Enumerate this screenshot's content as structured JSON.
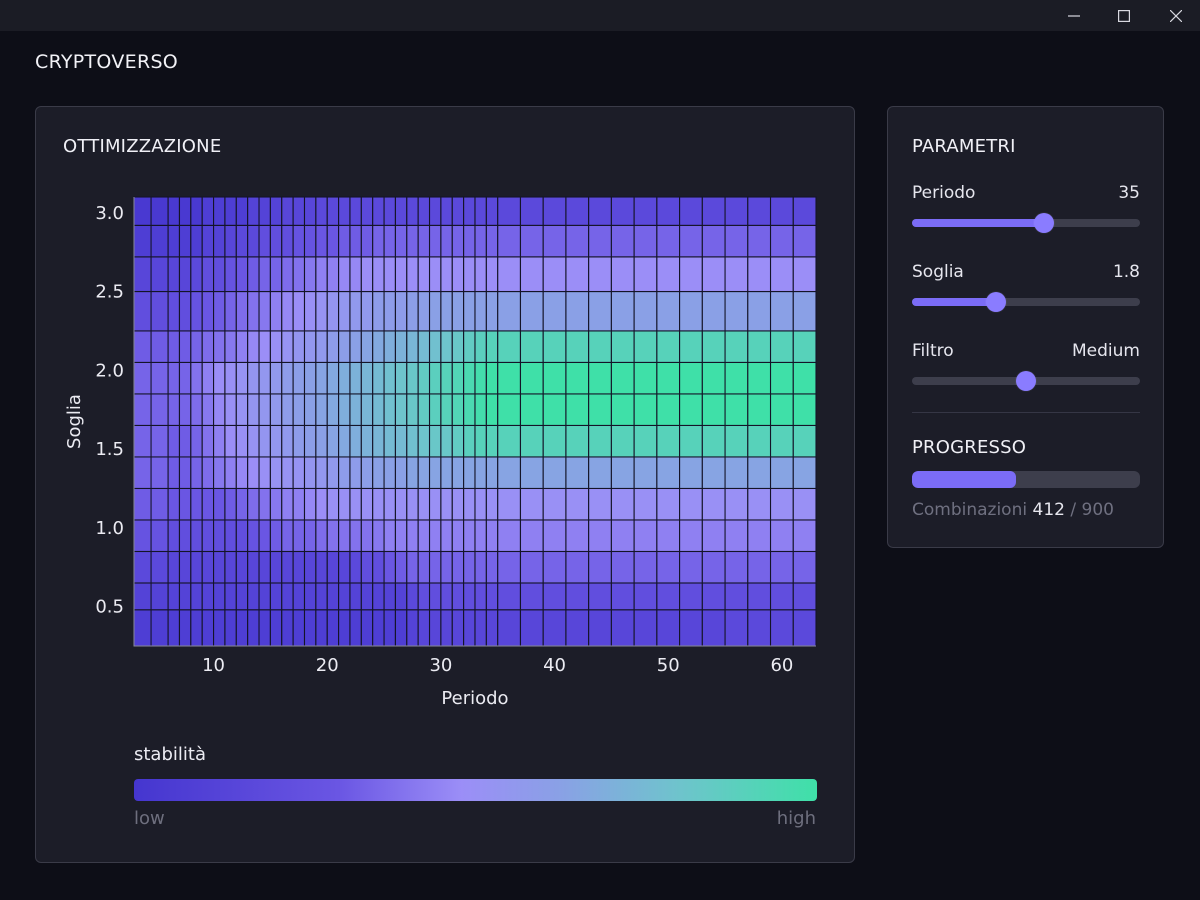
{
  "window": {
    "controls": [
      "minimize-icon",
      "maximize-icon",
      "close-icon"
    ]
  },
  "app": {
    "title": "CRYPTOVERSO"
  },
  "optimization": {
    "title": "OTTIMIZZAZIONE",
    "legend": {
      "title": "stabilità",
      "low": "low",
      "high": "high"
    }
  },
  "chart_data": {
    "type": "heatmap",
    "title": "",
    "xlabel": "Periodo",
    "ylabel": "Soglia",
    "xlim": [
      3,
      63
    ],
    "ylim": [
      0.25,
      3.1
    ],
    "x_ticks": [
      10,
      20,
      30,
      40,
      50,
      60
    ],
    "y_ticks": [
      0.5,
      1.0,
      1.5,
      2.0,
      2.5,
      3.0
    ],
    "x_tick_labels": [
      "10",
      "20",
      "30",
      "40",
      "50",
      "60"
    ],
    "y_tick_labels": [
      "0.5",
      "1.0",
      "1.5",
      "2.0",
      "2.5",
      "3.0"
    ],
    "x_edges": [
      3,
      4.5,
      6,
      7,
      8,
      9,
      10,
      11,
      12,
      13,
      14,
      15,
      16,
      17,
      18,
      19,
      20,
      21,
      22,
      23,
      24,
      25,
      26,
      27,
      28,
      29,
      30,
      31,
      32,
      33,
      34,
      35,
      37,
      39,
      41,
      43,
      45,
      47,
      49,
      51,
      53,
      55,
      57,
      59,
      61,
      63
    ],
    "y_edges": [
      0.25,
      0.48,
      0.65,
      0.85,
      1.05,
      1.25,
      1.45,
      1.65,
      1.85,
      2.05,
      2.25,
      2.5,
      2.72,
      2.92,
      3.1
    ],
    "colorbar": {
      "label": "stabilità",
      "min_label": "low",
      "max_label": "high"
    },
    "colors": [
      "#4536cf",
      "#6a56e3",
      "#9b8ef7",
      "#8aa0e6",
      "#6ec4cc",
      "#3fe0a8"
    ],
    "grid": true,
    "value_range": [
      0,
      1
    ],
    "values_note": "rows from bottom (Soglia 0.25) to top (Soglia 3.1); values normalized 0–1, estimated from color",
    "values": [
      [
        0.05,
        0.05,
        0.05,
        0.05,
        0.05,
        0.05,
        0.05,
        0.05,
        0.05,
        0.05,
        0.05,
        0.05,
        0.05,
        0.05,
        0.05,
        0.05,
        0.05,
        0.05,
        0.05,
        0.05,
        0.05,
        0.05,
        0.05,
        0.08,
        0.1,
        0.1,
        0.1,
        0.1,
        0.1,
        0.1,
        0.1,
        0.1,
        0.1,
        0.1,
        0.1,
        0.1,
        0.1,
        0.1,
        0.1,
        0.1,
        0.1,
        0.12,
        0.12,
        0.12,
        0.12
      ],
      [
        0.08,
        0.08,
        0.08,
        0.08,
        0.08,
        0.08,
        0.08,
        0.08,
        0.08,
        0.08,
        0.08,
        0.08,
        0.08,
        0.08,
        0.08,
        0.08,
        0.08,
        0.08,
        0.08,
        0.08,
        0.08,
        0.08,
        0.08,
        0.12,
        0.15,
        0.15,
        0.15,
        0.15,
        0.15,
        0.15,
        0.15,
        0.15,
        0.15,
        0.15,
        0.15,
        0.15,
        0.15,
        0.15,
        0.15,
        0.15,
        0.15,
        0.15,
        0.15,
        0.15,
        0.15
      ],
      [
        0.12,
        0.12,
        0.1,
        0.1,
        0.1,
        0.1,
        0.1,
        0.1,
        0.1,
        0.1,
        0.1,
        0.1,
        0.1,
        0.1,
        0.1,
        0.1,
        0.1,
        0.1,
        0.12,
        0.15,
        0.15,
        0.2,
        0.22,
        0.25,
        0.25,
        0.25,
        0.25,
        0.25,
        0.25,
        0.25,
        0.25,
        0.25,
        0.25,
        0.25,
        0.25,
        0.25,
        0.25,
        0.25,
        0.25,
        0.25,
        0.25,
        0.25,
        0.25,
        0.25,
        0.25
      ],
      [
        0.18,
        0.18,
        0.15,
        0.15,
        0.15,
        0.15,
        0.15,
        0.15,
        0.15,
        0.18,
        0.2,
        0.22,
        0.25,
        0.25,
        0.25,
        0.28,
        0.3,
        0.3,
        0.3,
        0.3,
        0.32,
        0.35,
        0.35,
        0.35,
        0.35,
        0.35,
        0.35,
        0.35,
        0.35,
        0.35,
        0.35,
        0.35,
        0.35,
        0.35,
        0.35,
        0.35,
        0.35,
        0.35,
        0.35,
        0.35,
        0.35,
        0.35,
        0.35,
        0.35,
        0.35
      ],
      [
        0.22,
        0.22,
        0.2,
        0.2,
        0.2,
        0.2,
        0.2,
        0.22,
        0.25,
        0.28,
        0.3,
        0.32,
        0.35,
        0.35,
        0.38,
        0.4,
        0.42,
        0.42,
        0.42,
        0.42,
        0.42,
        0.42,
        0.42,
        0.42,
        0.42,
        0.42,
        0.42,
        0.42,
        0.42,
        0.42,
        0.42,
        0.42,
        0.42,
        0.42,
        0.42,
        0.42,
        0.42,
        0.42,
        0.42,
        0.42,
        0.42,
        0.42,
        0.42,
        0.42,
        0.42
      ],
      [
        0.25,
        0.25,
        0.22,
        0.22,
        0.25,
        0.28,
        0.32,
        0.35,
        0.38,
        0.4,
        0.42,
        0.45,
        0.45,
        0.45,
        0.48,
        0.5,
        0.52,
        0.55,
        0.55,
        0.58,
        0.6,
        0.6,
        0.6,
        0.62,
        0.62,
        0.62,
        0.62,
        0.62,
        0.62,
        0.62,
        0.62,
        0.62,
        0.62,
        0.62,
        0.62,
        0.62,
        0.62,
        0.62,
        0.62,
        0.62,
        0.62,
        0.62,
        0.62,
        0.62,
        0.62
      ],
      [
        0.25,
        0.25,
        0.22,
        0.22,
        0.25,
        0.3,
        0.35,
        0.4,
        0.42,
        0.45,
        0.48,
        0.5,
        0.52,
        0.55,
        0.58,
        0.6,
        0.62,
        0.65,
        0.68,
        0.7,
        0.72,
        0.75,
        0.75,
        0.78,
        0.8,
        0.82,
        0.82,
        0.85,
        0.88,
        0.9,
        0.9,
        0.9,
        0.9,
        0.9,
        0.9,
        0.9,
        0.9,
        0.9,
        0.9,
        0.9,
        0.9,
        0.9,
        0.9,
        0.9,
        0.9
      ],
      [
        0.25,
        0.25,
        0.25,
        0.25,
        0.28,
        0.32,
        0.38,
        0.42,
        0.45,
        0.48,
        0.5,
        0.52,
        0.55,
        0.58,
        0.6,
        0.62,
        0.65,
        0.68,
        0.7,
        0.72,
        0.75,
        0.78,
        0.8,
        0.82,
        0.85,
        0.88,
        0.9,
        0.92,
        0.95,
        0.98,
        1,
        1,
        1,
        1,
        1,
        1,
        1,
        1,
        1,
        1,
        1,
        1,
        1,
        1,
        1
      ],
      [
        0.25,
        0.25,
        0.25,
        0.25,
        0.3,
        0.35,
        0.4,
        0.42,
        0.45,
        0.48,
        0.5,
        0.52,
        0.55,
        0.58,
        0.6,
        0.62,
        0.65,
        0.68,
        0.7,
        0.72,
        0.75,
        0.78,
        0.8,
        0.82,
        0.85,
        0.88,
        0.9,
        0.92,
        0.95,
        0.98,
        1,
        1,
        1,
        1,
        1,
        1,
        1,
        1,
        1,
        1,
        1,
        1,
        1,
        1,
        1
      ],
      [
        0.22,
        0.22,
        0.22,
        0.22,
        0.25,
        0.28,
        0.3,
        0.32,
        0.35,
        0.38,
        0.4,
        0.42,
        0.45,
        0.48,
        0.5,
        0.52,
        0.55,
        0.58,
        0.6,
        0.62,
        0.65,
        0.68,
        0.7,
        0.72,
        0.75,
        0.78,
        0.8,
        0.82,
        0.85,
        0.88,
        0.9,
        0.9,
        0.9,
        0.9,
        0.9,
        0.9,
        0.9,
        0.9,
        0.9,
        0.9,
        0.9,
        0.9,
        0.9,
        0.9,
        0.9
      ],
      [
        0.15,
        0.15,
        0.15,
        0.15,
        0.18,
        0.2,
        0.22,
        0.25,
        0.28,
        0.3,
        0.32,
        0.35,
        0.38,
        0.4,
        0.42,
        0.45,
        0.48,
        0.5,
        0.52,
        0.52,
        0.55,
        0.55,
        0.55,
        0.58,
        0.58,
        0.6,
        0.6,
        0.6,
        0.6,
        0.6,
        0.6,
        0.6,
        0.6,
        0.6,
        0.6,
        0.6,
        0.6,
        0.6,
        0.6,
        0.6,
        0.6,
        0.6,
        0.6,
        0.6,
        0.6
      ],
      [
        0.1,
        0.1,
        0.1,
        0.1,
        0.12,
        0.15,
        0.15,
        0.18,
        0.2,
        0.22,
        0.25,
        0.25,
        0.28,
        0.3,
        0.32,
        0.35,
        0.35,
        0.38,
        0.38,
        0.4,
        0.4,
        0.4,
        0.4,
        0.4,
        0.4,
        0.4,
        0.4,
        0.4,
        0.4,
        0.4,
        0.4,
        0.4,
        0.4,
        0.4,
        0.4,
        0.4,
        0.4,
        0.4,
        0.4,
        0.4,
        0.4,
        0.4,
        0.4,
        0.4,
        0.4
      ],
      [
        0.05,
        0.05,
        0.05,
        0.05,
        0.05,
        0.08,
        0.08,
        0.1,
        0.12,
        0.12,
        0.15,
        0.15,
        0.15,
        0.18,
        0.18,
        0.2,
        0.2,
        0.22,
        0.22,
        0.22,
        0.25,
        0.25,
        0.25,
        0.25,
        0.25,
        0.25,
        0.25,
        0.25,
        0.25,
        0.25,
        0.25,
        0.25,
        0.25,
        0.25,
        0.25,
        0.25,
        0.25,
        0.25,
        0.25,
        0.25,
        0.25,
        0.25,
        0.25,
        0.25,
        0.25
      ],
      [
        0.02,
        0.02,
        0.02,
        0.02,
        0.02,
        0.05,
        0.05,
        0.05,
        0.05,
        0.08,
        0.08,
        0.08,
        0.1,
        0.1,
        0.1,
        0.12,
        0.12,
        0.12,
        0.12,
        0.12,
        0.12,
        0.12,
        0.12,
        0.12,
        0.12,
        0.12,
        0.12,
        0.12,
        0.12,
        0.12,
        0.12,
        0.12,
        0.12,
        0.12,
        0.12,
        0.12,
        0.12,
        0.12,
        0.12,
        0.12,
        0.12,
        0.12,
        0.12,
        0.12,
        0.12
      ]
    ]
  },
  "parameters": {
    "title": "PARAMETRI",
    "periodo": {
      "label": "Periodo",
      "value": "35",
      "fraction": 0.58
    },
    "soglia": {
      "label": "Soglia",
      "value": "1.8",
      "fraction": 0.37
    },
    "filtro": {
      "label": "Filtro",
      "value": "Medium",
      "fraction": 0.5
    }
  },
  "progress": {
    "title": "PROGRESSO",
    "label": "Combinazioni",
    "done": "412",
    "separator": "/",
    "total": "900",
    "fraction": 0.457
  },
  "colors": {
    "background": "#0d0e17",
    "panel": "#1c1d28",
    "accent": "#7b6cf6",
    "track": "#3d3e4c"
  }
}
